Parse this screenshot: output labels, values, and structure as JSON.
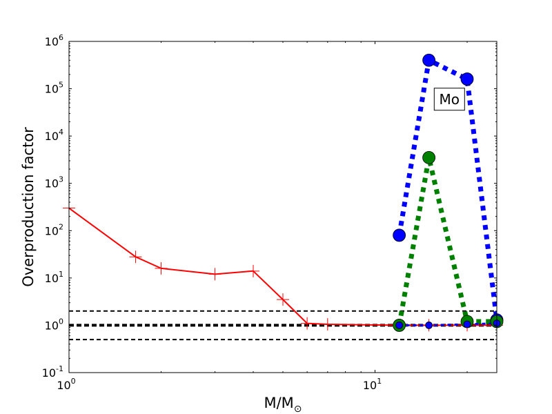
{
  "chart_data": {
    "type": "line",
    "xscale": "log",
    "yscale": "log",
    "xlim": [
      1,
      25
    ],
    "ylim": [
      0.1,
      1000000
    ],
    "xlabel": "M/M",
    "xlabel_symbol": "⊙",
    "ylabel": "Overproduction factor",
    "x_ticks": [
      {
        "value": 1,
        "base": "10",
        "exp": "0"
      },
      {
        "value": 10,
        "base": "10",
        "exp": "1"
      }
    ],
    "y_ticks": [
      {
        "value": 0.1,
        "base": "10",
        "exp": "-1"
      },
      {
        "value": 1,
        "base": "10",
        "exp": "0"
      },
      {
        "value": 10,
        "base": "10",
        "exp": "1"
      },
      {
        "value": 100,
        "base": "10",
        "exp": "2"
      },
      {
        "value": 1000,
        "base": "10",
        "exp": "3"
      },
      {
        "value": 10000,
        "base": "10",
        "exp": "4"
      },
      {
        "value": 100000,
        "base": "10",
        "exp": "5"
      },
      {
        "value": 1000000,
        "base": "10",
        "exp": "6"
      }
    ],
    "reference_lines": [
      {
        "y": 2,
        "style": "dashed",
        "color": "#000000"
      },
      {
        "y": 1,
        "style": "dashed-thick",
        "color": "#000000"
      },
      {
        "y": 0.5,
        "style": "dashed",
        "color": "#000000"
      }
    ],
    "series": [
      {
        "style": "solid",
        "color": "#ff0000",
        "marker": "plus",
        "x": [
          1,
          1.65,
          2,
          3,
          4,
          5,
          6,
          7,
          12,
          15,
          20,
          25
        ],
        "y": [
          300,
          28,
          16,
          12,
          14,
          3.5,
          1.1,
          1.05,
          1.0,
          1.0,
          1.0,
          1.0
        ]
      },
      {
        "style": "dotted",
        "color": "#0000ff",
        "marker": "circle",
        "x": [
          12,
          15,
          20,
          25
        ],
        "y": [
          80,
          400000,
          160000,
          1.3
        ]
      },
      {
        "style": "dotted",
        "color": "#008000",
        "marker": "circle",
        "x": [
          12,
          15,
          20,
          25
        ],
        "y": [
          1.0,
          3500,
          1.2,
          1.2
        ]
      },
      {
        "style": "dotted",
        "color": "#0000ff",
        "marker": "small-circle",
        "x": [
          12,
          15,
          20,
          25
        ],
        "y": [
          1.0,
          1.0,
          1.05,
          1.1
        ]
      }
    ],
    "annotations": [
      {
        "text": "Mo",
        "x": 17.5,
        "y": 60000
      }
    ]
  }
}
